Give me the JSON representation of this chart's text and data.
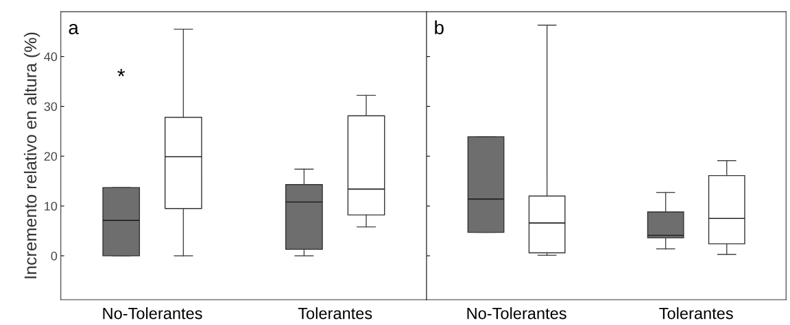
{
  "chart_data": [
    {
      "type": "box",
      "title": "a",
      "ylabel": "Incremento relativo en altura (%)",
      "categories": [
        "No-Tolerantes",
        "Tolerantes"
      ],
      "ylim": [
        -8.8,
        49
      ],
      "yticks": [
        0,
        10,
        20,
        30,
        40
      ],
      "series": [
        {
          "color": "#6e6e6e",
          "boxes": [
            {
              "low": 0,
              "q1": 0,
              "median": 7.1,
              "q3": 13.7,
              "high": 13.7
            },
            {
              "low": 0,
              "q1": 1.3,
              "median": 10.8,
              "q3": 14.3,
              "high": 17.4
            }
          ]
        },
        {
          "color": "#ffffff",
          "boxes": [
            {
              "low": 0,
              "q1": 9.5,
              "median": 19.9,
              "q3": 27.8,
              "high": 45.5
            },
            {
              "low": 5.8,
              "q1": 8.2,
              "median": 13.4,
              "q3": 28.1,
              "high": 32.2
            }
          ]
        }
      ],
      "annotations": [
        "*"
      ]
    },
    {
      "type": "box",
      "title": "b",
      "categories": [
        "No-Tolerantes",
        "Tolerantes"
      ],
      "ylim": [
        -8.8,
        49
      ],
      "yticks": [
        {
          "value": 0,
          "label": null
        },
        {
          "value": 10,
          "label": null
        },
        {
          "value": 20,
          "label": null
        },
        {
          "value": 30,
          "label": null
        },
        {
          "value": 40,
          "label": null
        }
      ],
      "tick_labels": "x",
      "series": [
        {
          "color": "#6e6e6e",
          "boxes": [
            {
              "low": 4.7,
              "q1": 4.7,
              "median": 11.4,
              "q3": 23.9,
              "high": 23.9
            },
            {
              "low": 1.4,
              "q1": 3.6,
              "median": 4.1,
              "q3": 8.8,
              "high": 12.7
            }
          ]
        },
        {
          "color": "#ffffff",
          "boxes": [
            {
              "low": 0.1,
              "q1": 0.6,
              "median": 6.6,
              "q3": 12.0,
              "high": 46.3
            },
            {
              "low": 0.3,
              "q1": 2.4,
              "median": 7.5,
              "q3": 16.1,
              "high": 19.1
            }
          ]
        }
      ]
    }
  ]
}
